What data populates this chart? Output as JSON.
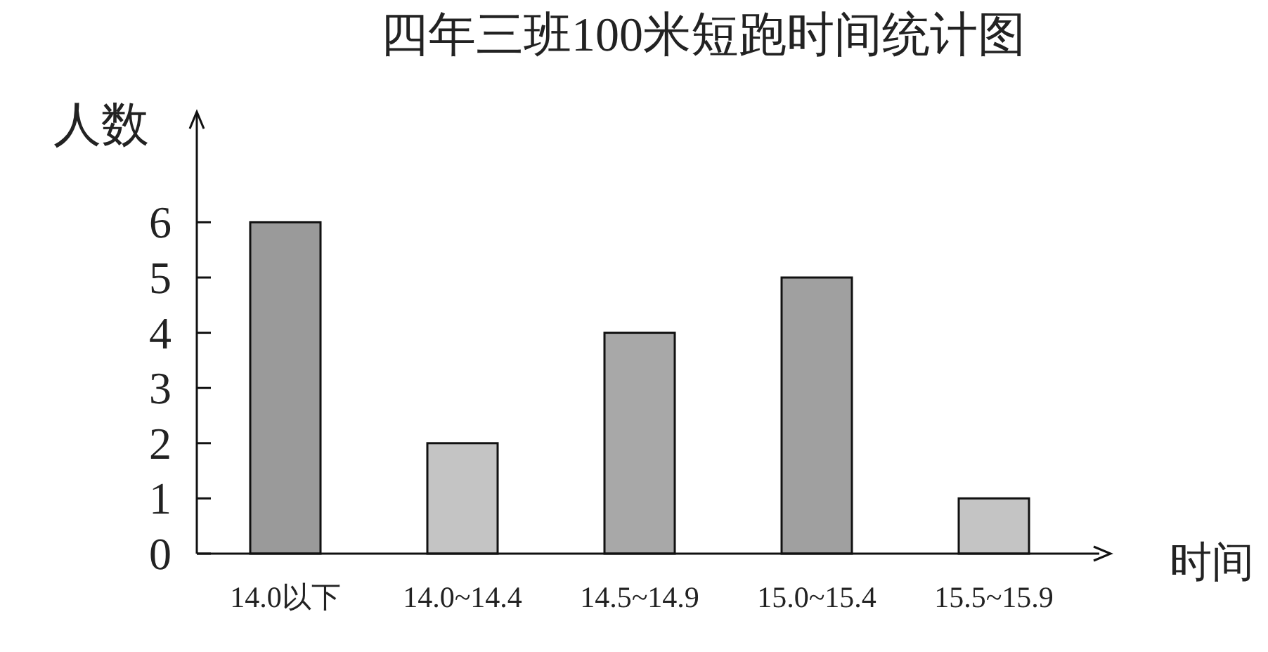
{
  "chart_data": {
    "type": "bar",
    "title": "四年三班100米短跑时间统计图",
    "ylabel": "人数",
    "xlabel": "时间",
    "categories": [
      "14.0以下",
      "14.0~14.4",
      "14.5~14.9",
      "15.0~15.4",
      "15.5~15.9"
    ],
    "values": [
      6,
      2,
      4,
      5,
      1
    ],
    "colors": [
      "#9a9a9a",
      "#c4c4c4",
      "#a8a8a8",
      "#a0a0a0",
      "#c4c4c4"
    ],
    "ylim": [
      0,
      8
    ],
    "yticks": [
      0,
      1,
      2,
      3,
      4,
      5,
      6
    ],
    "grid": false
  }
}
